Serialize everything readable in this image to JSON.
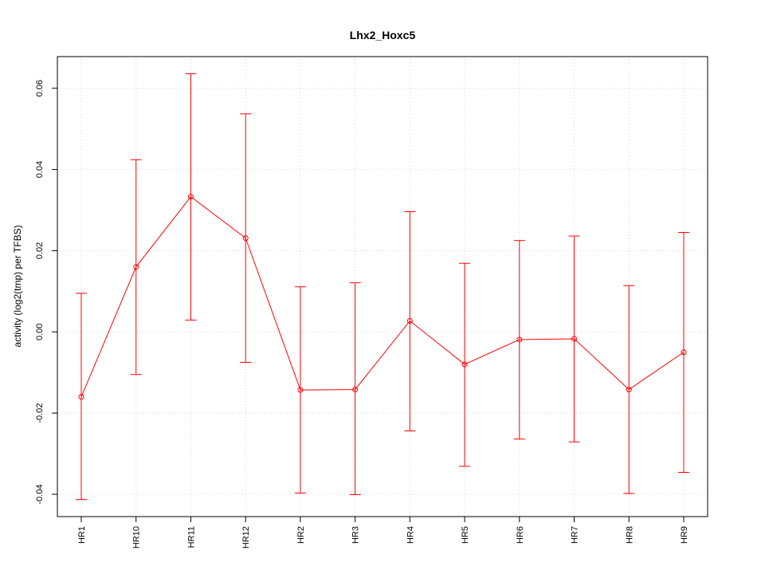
{
  "chart_data": {
    "type": "line",
    "title": "Lhx2_Hoxc5",
    "xlabel": "",
    "ylabel": "activity (log2(tmp) per TFBS)",
    "categories": [
      "HR1",
      "HR10",
      "HR11",
      "HR12",
      "HR2",
      "HR3",
      "HR4",
      "HR5",
      "HR6",
      "HR7",
      "HR8",
      "HR9"
    ],
    "series": [
      {
        "values": [
          -0.016,
          0.016,
          0.0333,
          0.0231,
          -0.0143,
          -0.0142,
          0.0027,
          -0.008,
          -0.0019,
          -0.0017,
          -0.0142,
          -0.005
        ],
        "lower": [
          -0.0413,
          -0.0105,
          0.0029,
          -0.0075,
          -0.0397,
          -0.0401,
          -0.0244,
          -0.0331,
          -0.0264,
          -0.0271,
          -0.0398,
          -0.0346
        ],
        "upper": [
          0.0095,
          0.0424,
          0.0636,
          0.0537,
          0.0111,
          0.0121,
          0.0296,
          0.0169,
          0.0225,
          0.0236,
          0.0114,
          0.0245
        ],
        "color": "#ff0000"
      }
    ],
    "yticks": [
      "-0.04",
      "-0.02",
      "0.00",
      "0.02",
      "0.04",
      "0.06"
    ],
    "ylim": [
      -0.0455,
      0.0678
    ],
    "grid": true,
    "reference_line": 0
  }
}
